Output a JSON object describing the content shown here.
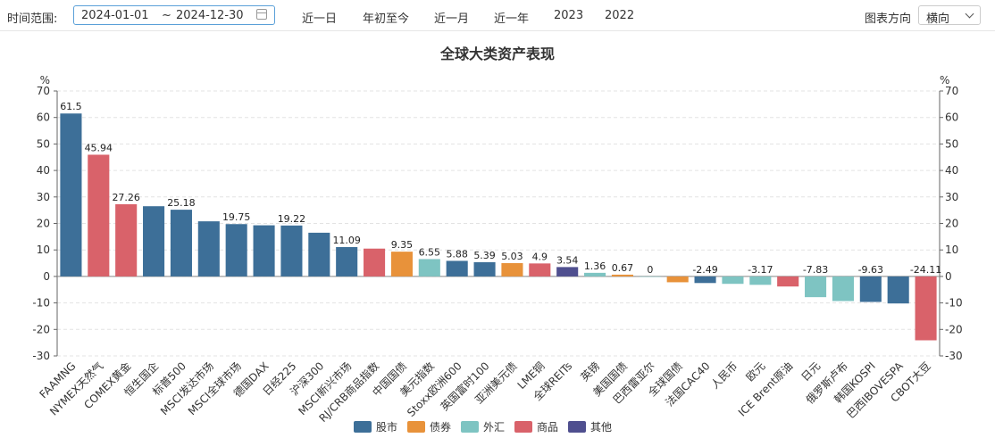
{
  "toolbar": {
    "range_label": "时间范围:",
    "start_date": "2024-01-01",
    "range_sep": "~",
    "end_date": "2024-12-30",
    "quick_ranges": [
      "近一日",
      "年初至今",
      "近一月",
      "近一年",
      "2023",
      "2022"
    ],
    "direction_label": "图表方向",
    "direction_value": "横向",
    "calendar_icon": "calendar-icon",
    "chevron_icon": "chevron-down-icon"
  },
  "chart_data": {
    "type": "bar",
    "title": "全球大类资产表现",
    "ylabel": "%",
    "ylim": [
      -30,
      70
    ],
    "yticks": [
      70,
      60,
      50,
      40,
      30,
      20,
      10,
      0,
      -10,
      -20,
      -30
    ],
    "grid": true,
    "legend_position": "bottom",
    "legend": [
      {
        "name": "股市",
        "color": "#3d6f98"
      },
      {
        "name": "债券",
        "color": "#e8923a"
      },
      {
        "name": "外汇",
        "color": "#7ec4c2"
      },
      {
        "name": "商品",
        "color": "#d9626a"
      },
      {
        "name": "其他",
        "color": "#4f4f8f"
      }
    ],
    "categories": [
      "FAAMNG",
      "NYMEX天然气",
      "COMEX黄金",
      "恒生国企",
      "标普500",
      "MSCI发达市场",
      "MSCI全球市场",
      "德国DAX",
      "日经225",
      "沪深300",
      "MSCI新兴市场",
      "RJ/CRB商品指数",
      "中国国债",
      "美元指数",
      "Stoxx欧洲600",
      "英国富时100",
      "亚洲美元债",
      "LME铜",
      "全球REITs",
      "英镑",
      "美国国债",
      "巴西雷亚尔",
      "全球国债",
      "法国CAC40",
      "人民币",
      "欧元",
      "ICE Brent原油",
      "日元",
      "俄罗斯卢布",
      "韩国KOSPI",
      "巴西IBOVESPA",
      "CBOT大豆"
    ],
    "groups": [
      "股市",
      "商品",
      "商品",
      "股市",
      "股市",
      "股市",
      "股市",
      "股市",
      "股市",
      "股市",
      "股市",
      "商品",
      "债券",
      "外汇",
      "股市",
      "股市",
      "债券",
      "商品",
      "其他",
      "外汇",
      "债券",
      "外汇",
      "债券",
      "股市",
      "外汇",
      "外汇",
      "商品",
      "外汇",
      "外汇",
      "股市",
      "股市",
      "商品"
    ],
    "values": [
      61.5,
      45.94,
      27.26,
      26.5,
      25.18,
      20.8,
      19.75,
      19.3,
      19.22,
      16.5,
      11.09,
      10.5,
      9.35,
      6.55,
      5.88,
      5.39,
      5.03,
      4.9,
      3.54,
      1.36,
      0.67,
      0,
      -2.2,
      -2.49,
      -2.8,
      -3.17,
      -3.8,
      -7.83,
      -9.3,
      -9.63,
      -10.2,
      -24.11
    ],
    "data_labels": [
      "61.5",
      "45.94",
      "27.26",
      "",
      "25.18",
      "",
      "19.75",
      "",
      "19.22",
      "",
      "11.09",
      "",
      "9.35",
      "6.55",
      "5.88",
      "5.39",
      "5.03",
      "4.9",
      "3.54",
      "1.36",
      "0.67",
      "0",
      "",
      "-2.49",
      "",
      "-3.17",
      "",
      "-7.83",
      "",
      "-9.63",
      "",
      "-24.11"
    ]
  }
}
